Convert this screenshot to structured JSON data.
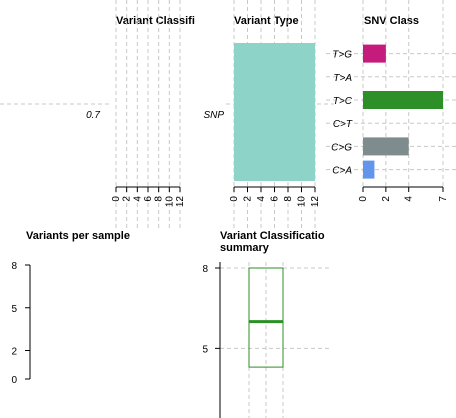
{
  "chart_data": [
    {
      "id": "variant-classification",
      "type": "bar",
      "title": "Variant Classifi",
      "categories": [
        "0.7"
      ],
      "values": [
        0
      ],
      "xticks": [
        0,
        2,
        4,
        6,
        8,
        10,
        12
      ],
      "xlim": [
        0,
        12
      ]
    },
    {
      "id": "variant-type",
      "type": "bar",
      "title": "Variant Type",
      "categories": [
        "SNP"
      ],
      "values": [
        12
      ],
      "xticks": [
        0,
        2,
        4,
        6,
        8,
        10,
        12
      ],
      "xlim": [
        0,
        12
      ],
      "colors": [
        "#8dd3c7"
      ]
    },
    {
      "id": "snv-class",
      "type": "bar",
      "title": "SNV Class",
      "categories": [
        "T>G",
        "T>A",
        "T>C",
        "C>T",
        "C>G",
        "C>A"
      ],
      "values": [
        2,
        0,
        7,
        0,
        4,
        1
      ],
      "xticks": [
        0,
        2,
        4,
        7
      ],
      "xlim": [
        0,
        7
      ],
      "colors": [
        "#c51b7d",
        "#f4a582",
        "#2c8f27",
        "#8a8a8a",
        "#7f8c8d",
        "#6495ed"
      ]
    },
    {
      "id": "variants-per-sample",
      "type": "bar",
      "title": "Variants per sample",
      "yticks": [
        0,
        2,
        5,
        8
      ],
      "ylim": [
        0,
        8
      ],
      "categories": [],
      "values": []
    },
    {
      "id": "variant-classification-summary",
      "type": "box",
      "title_lines": [
        "Variant Classificatio",
        "summary"
      ],
      "yticks": [
        5,
        8
      ],
      "ylim": [
        2.4,
        8
      ],
      "box": {
        "q1": 4.3,
        "median": 6.0,
        "q3": 8.0
      },
      "color": "#2c8f27"
    }
  ]
}
